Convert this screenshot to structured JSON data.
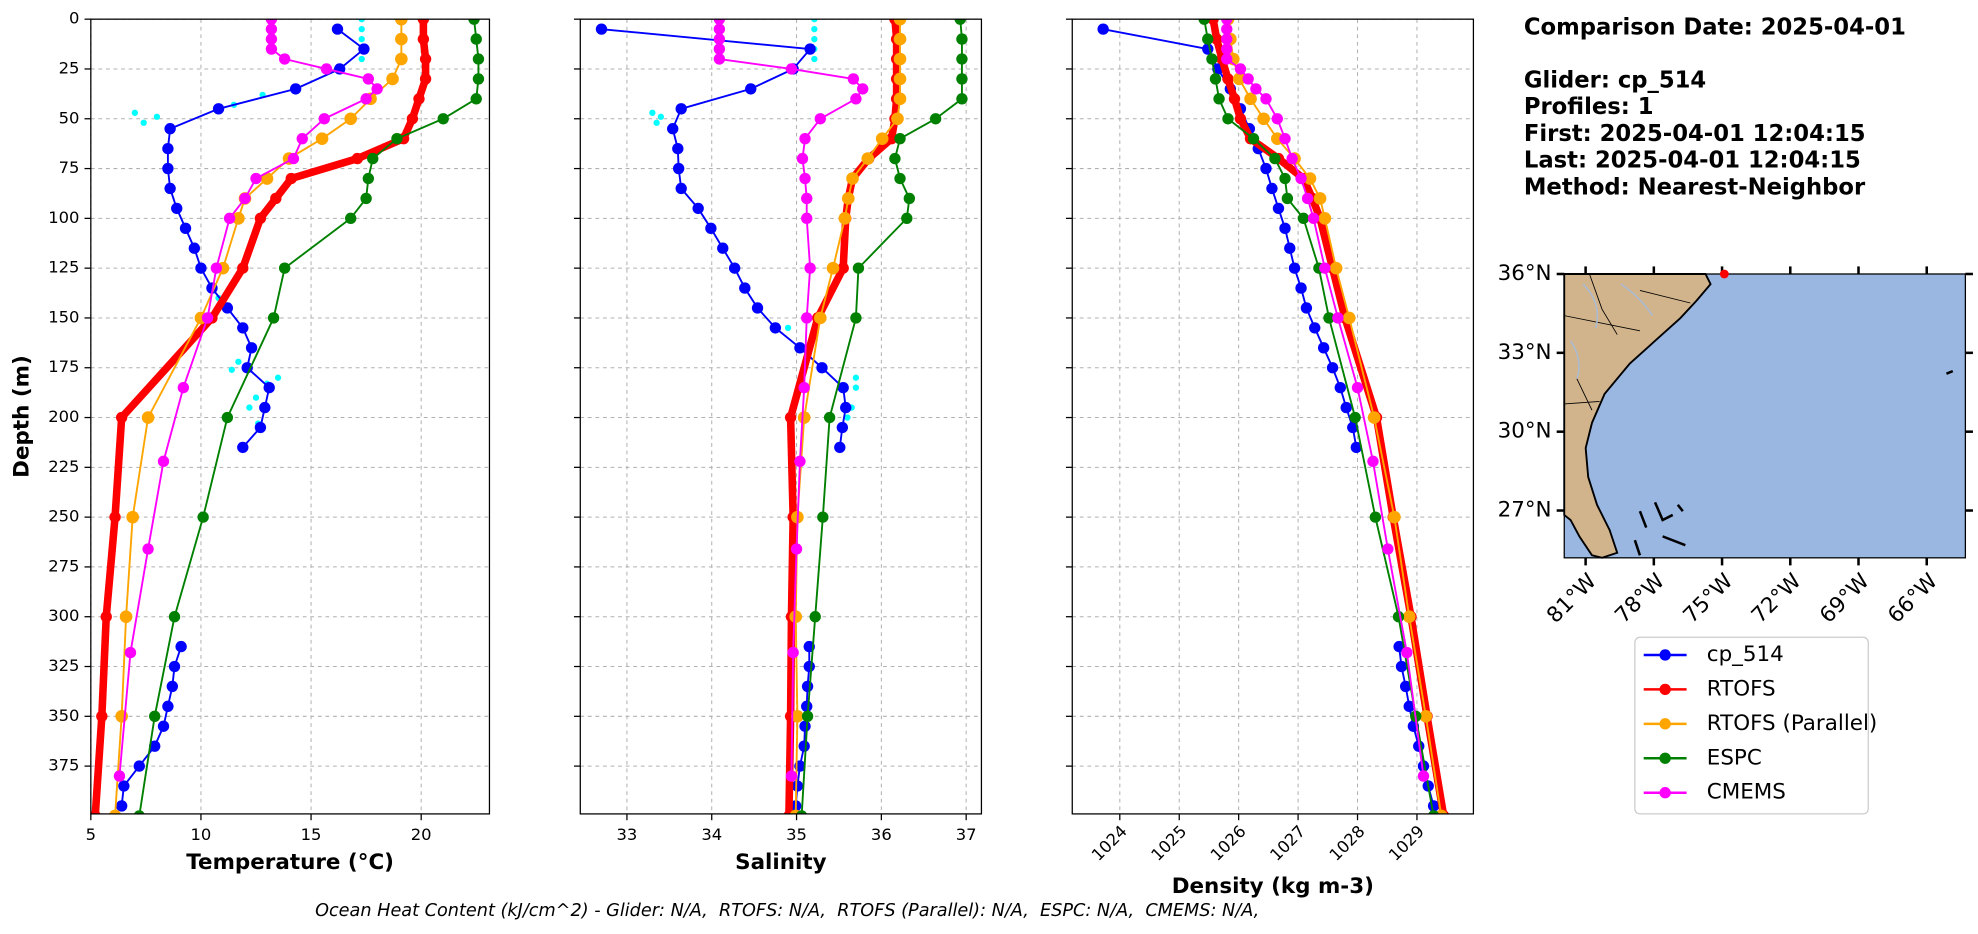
{
  "info": [
    "Comparison Date: 2025-04-01",
    "Glider: cp_514",
    "Profiles: 1",
    "First: 2025-04-01 12:04:15",
    "Last: 2025-04-01 12:04:15",
    "Method: Nearest-Neighbor"
  ],
  "footer": "Ocean Heat Content (kJ/cm^2) - Glider: N/A,  RTOFS: N/A,  RTOFS (Parallel): N/A,  ESPC: N/A,  CMEMS: N/A,",
  "legend": {
    "entries": [
      {
        "name": "cp_514",
        "color": "#0000ff",
        "linewidth": 1.5,
        "marker_radius": 4.5
      },
      {
        "name": "RTOFS",
        "color": "#ff0000",
        "linewidth": 6,
        "marker_radius": 4.5
      },
      {
        "name": "RTOFS (Parallel)",
        "color": "#ffa500",
        "linewidth": 1.5,
        "marker_radius": 5
      },
      {
        "name": "ESPC",
        "color": "#008000",
        "linewidth": 1.5,
        "marker_radius": 4.5
      },
      {
        "name": "CMEMS",
        "color": "#ff00ff",
        "linewidth": 1.5,
        "marker_radius": 4.5
      }
    ]
  },
  "raw_color": "#00ffff",
  "chart_data": [
    {
      "type": "line",
      "xlabel": "Temperature (°C)",
      "ylabel": "Depth (m)",
      "xlim": [
        5,
        23.1
      ],
      "xticks": [
        5,
        10,
        15,
        20
      ],
      "ylim": [
        399,
        0
      ],
      "yticks": [
        0,
        25,
        50,
        75,
        100,
        125,
        150,
        175,
        200,
        225,
        250,
        275,
        300,
        325,
        350,
        375
      ],
      "grid": true,
      "raw": {
        "x": [
          17.3,
          17.3,
          17.3,
          17.3,
          17.3,
          12.8,
          11.5,
          7.0,
          8.0,
          7.4,
          10.8,
          11.7,
          11.4,
          13.5,
          13.0,
          12.5,
          12.2,
          12.6
        ],
        "y": [
          0,
          5,
          10,
          15,
          20,
          38,
          43,
          47,
          49,
          52,
          140,
          172,
          176,
          180,
          183,
          190,
          195,
          203
        ]
      },
      "series": [
        {
          "x": [
            16.2,
            17.4,
            16.3,
            14.3,
            10.8,
            8.6,
            8.5,
            8.5,
            8.6,
            8.9,
            9.3,
            9.7,
            10.0,
            10.5,
            11.2,
            11.9,
            12.3,
            12.1,
            13.1,
            12.9,
            12.7,
            11.9,
            null,
            9.1,
            8.8,
            8.7,
            8.5,
            8.3,
            7.9,
            7.2,
            6.5,
            6.4
          ],
          "y": [
            5,
            15,
            25,
            35,
            45,
            55,
            65,
            75,
            85,
            95,
            105,
            115,
            125,
            135,
            145,
            155,
            165,
            175,
            185,
            195,
            205,
            215,
            null,
            315,
            325,
            335,
            345,
            355,
            365,
            375,
            385,
            395
          ]
        },
        {
          "x": [
            20.1,
            20.1,
            20.2,
            20.2,
            19.9,
            19.6,
            19.2,
            17.1,
            14.1,
            13.4,
            12.7,
            11.9,
            10.5,
            6.4,
            6.1,
            5.7,
            5.5,
            5.2
          ],
          "y": [
            0,
            10,
            20,
            30,
            40,
            50,
            60,
            70,
            80,
            90,
            100,
            125,
            150,
            200,
            250,
            300,
            350,
            400
          ]
        },
        {
          "x": [
            19.1,
            19.1,
            19.1,
            18.7,
            17.7,
            16.8,
            15.5,
            14.0,
            13.0,
            12.0,
            11.7,
            11.0,
            10.0,
            7.6,
            6.9,
            6.6,
            6.4,
            6.1
          ],
          "y": [
            0,
            10,
            20,
            30,
            40,
            50,
            60,
            70,
            80,
            90,
            100,
            125,
            150,
            200,
            250,
            300,
            350,
            400
          ]
        },
        {
          "x": [
            22.4,
            22.5,
            22.6,
            22.6,
            22.5,
            21.0,
            18.9,
            17.8,
            17.6,
            17.5,
            16.8,
            13.8,
            13.3,
            11.2,
            10.1,
            8.8,
            7.9,
            7.2
          ],
          "y": [
            0,
            10,
            20,
            30,
            40,
            50,
            60,
            70,
            80,
            90,
            100,
            125,
            150,
            200,
            250,
            300,
            350,
            400
          ]
        },
        {
          "x": [
            13.2,
            13.2,
            13.2,
            13.2,
            13.8,
            15.7,
            17.6,
            18.0,
            17.5,
            15.6,
            14.6,
            14.2,
            12.5,
            12.0,
            11.3,
            10.7,
            10.3,
            9.2,
            8.3,
            7.6,
            6.8,
            6.3
          ],
          "y": [
            0,
            5,
            10,
            15,
            20,
            25,
            30,
            35,
            40,
            50,
            60,
            70,
            80,
            90,
            100,
            125,
            150,
            185,
            222,
            266,
            318,
            380
          ]
        }
      ]
    },
    {
      "type": "line",
      "xlabel": "Salinity",
      "xlim": [
        32.45,
        37.18
      ],
      "xticks": [
        33,
        34,
        35,
        36,
        37
      ],
      "ylim": [
        399,
        0
      ],
      "yticks": [
        0,
        25,
        50,
        75,
        100,
        125,
        150,
        175,
        200,
        225,
        250,
        275,
        300,
        325,
        350,
        375
      ],
      "grid": true,
      "raw": {
        "x": [
          35.21,
          35.21,
          35.21,
          35.21,
          35.21,
          33.3,
          33.4,
          33.35,
          34.9,
          35.7,
          35.7,
          35.65,
          35.6
        ],
        "y": [
          0,
          5,
          10,
          15,
          20,
          47,
          49,
          52,
          155,
          180,
          185,
          195,
          200
        ]
      },
      "series": [
        {
          "x": [
            32.7,
            35.16,
            34.96,
            34.46,
            33.64,
            33.54,
            33.6,
            33.61,
            33.64,
            33.84,
            33.99,
            34.13,
            34.27,
            34.39,
            34.54,
            34.75,
            35.04,
            35.3,
            35.55,
            35.58,
            35.54,
            35.51,
            null,
            35.15,
            35.15,
            35.13,
            35.12,
            35.1,
            35.09,
            35.04,
            35.01,
            34.99
          ],
          "y": [
            5,
            15,
            25,
            35,
            45,
            55,
            65,
            75,
            85,
            95,
            105,
            115,
            125,
            135,
            145,
            155,
            165,
            175,
            185,
            195,
            205,
            215,
            null,
            315,
            325,
            335,
            345,
            355,
            365,
            375,
            385,
            395
          ]
        },
        {
          "x": [
            36.16,
            36.18,
            36.18,
            36.18,
            36.18,
            36.16,
            36.12,
            35.85,
            35.66,
            35.61,
            35.58,
            35.55,
            35.25,
            34.93,
            34.96,
            34.94,
            34.93,
            34.91
          ],
          "y": [
            0,
            10,
            20,
            30,
            40,
            50,
            60,
            70,
            80,
            90,
            100,
            125,
            150,
            200,
            250,
            300,
            350,
            400
          ]
        },
        {
          "x": [
            36.22,
            36.22,
            36.22,
            36.22,
            36.22,
            36.19,
            36.01,
            35.84,
            35.66,
            35.61,
            35.57,
            35.43,
            35.28,
            35.09,
            35.01,
            34.99,
            35.01,
            34.99
          ],
          "y": [
            0,
            10,
            20,
            30,
            40,
            50,
            60,
            70,
            80,
            90,
            100,
            125,
            150,
            200,
            250,
            300,
            350,
            400
          ]
        },
        {
          "x": [
            36.93,
            36.95,
            36.95,
            36.95,
            36.95,
            36.64,
            36.22,
            36.16,
            36.22,
            36.33,
            36.3,
            35.73,
            35.7,
            35.39,
            35.31,
            35.22,
            35.13,
            35.06
          ],
          "y": [
            0,
            10,
            20,
            30,
            40,
            50,
            60,
            70,
            80,
            90,
            100,
            125,
            150,
            200,
            250,
            300,
            350,
            400
          ]
        },
        {
          "x": [
            34.09,
            34.09,
            34.09,
            34.09,
            34.09,
            34.94,
            35.67,
            35.78,
            35.7,
            35.28,
            35.1,
            35.07,
            35.1,
            35.12,
            35.12,
            35.16,
            35.12,
            35.09,
            35.04,
            35.0,
            34.96,
            34.94
          ],
          "y": [
            0,
            5,
            10,
            15,
            20,
            25,
            30,
            35,
            40,
            50,
            60,
            70,
            80,
            90,
            100,
            125,
            150,
            185,
            222,
            266,
            318,
            380
          ]
        }
      ]
    },
    {
      "type": "line",
      "xlabel": "Density (kg m-3)",
      "xtick_rotation": 45,
      "xlim": [
        1023.2,
        1029.95
      ],
      "xticks": [
        1024,
        1025,
        1026,
        1027,
        1028,
        1029
      ],
      "ylim": [
        399,
        0
      ],
      "yticks": [
        0,
        25,
        50,
        75,
        100,
        125,
        150,
        175,
        200,
        225,
        250,
        275,
        300,
        325,
        350,
        375
      ],
      "grid": true,
      "series": [
        {
          "x": [
            1023.72,
            1025.48,
            1025.65,
            1025.86,
            1026.03,
            1026.18,
            1026.33,
            1026.46,
            1026.56,
            1026.67,
            1026.78,
            1026.86,
            1026.94,
            1027.05,
            1027.14,
            1027.28,
            1027.43,
            1027.58,
            1027.71,
            1027.81,
            1027.92,
            1027.98,
            null,
            1028.7,
            1028.74,
            1028.81,
            1028.87,
            1028.94,
            1029.03,
            1029.11,
            1029.19,
            1029.28
          ],
          "y": [
            5,
            15,
            25,
            35,
            45,
            55,
            65,
            75,
            85,
            95,
            105,
            115,
            125,
            135,
            145,
            155,
            165,
            175,
            185,
            195,
            205,
            215,
            null,
            315,
            325,
            335,
            345,
            355,
            365,
            375,
            385,
            395
          ]
        },
        {
          "x": [
            1025.57,
            1025.63,
            1025.72,
            1025.82,
            1025.93,
            1026.03,
            1026.2,
            1026.67,
            1027.09,
            1027.24,
            1027.37,
            1027.58,
            1027.79,
            1028.32,
            1028.6,
            1028.9,
            1029.17,
            1029.45
          ],
          "y": [
            0,
            10,
            20,
            30,
            40,
            50,
            60,
            70,
            80,
            90,
            100,
            125,
            150,
            200,
            250,
            300,
            350,
            400
          ]
        },
        {
          "x": [
            1025.82,
            1025.86,
            1025.91,
            1026.01,
            1026.2,
            1026.42,
            1026.65,
            1026.94,
            1027.2,
            1027.37,
            1027.45,
            1027.64,
            1027.86,
            1028.28,
            1028.62,
            1028.87,
            1029.15,
            1029.41
          ],
          "y": [
            0,
            10,
            20,
            30,
            40,
            50,
            60,
            70,
            80,
            90,
            100,
            125,
            150,
            200,
            250,
            300,
            350,
            400
          ]
        },
        {
          "x": [
            1025.42,
            1025.48,
            1025.55,
            1025.61,
            1025.67,
            1025.82,
            1026.25,
            1026.61,
            1026.78,
            1026.82,
            1027.09,
            1027.35,
            1027.52,
            1027.96,
            1028.3,
            1028.69,
            1028.98,
            1029.28
          ],
          "y": [
            0,
            10,
            20,
            30,
            40,
            50,
            60,
            70,
            80,
            90,
            100,
            125,
            150,
            200,
            250,
            300,
            350,
            400
          ]
        },
        {
          "x": [
            1025.8,
            1025.8,
            1025.8,
            1025.8,
            1025.8,
            1026.03,
            1026.16,
            1026.29,
            1026.46,
            1026.65,
            1026.78,
            1026.9,
            1027.05,
            1027.16,
            1027.26,
            1027.45,
            1027.67,
            1028.0,
            1028.26,
            1028.51,
            1028.83,
            1029.11
          ],
          "y": [
            0,
            5,
            10,
            15,
            20,
            25,
            30,
            35,
            40,
            50,
            60,
            70,
            80,
            90,
            100,
            125,
            150,
            185,
            222,
            266,
            318,
            380
          ]
        }
      ]
    }
  ],
  "map": {
    "lonlim": [
      -81.94,
      -64.3
    ],
    "latlim": [
      25.2,
      36
    ],
    "latticks": [
      {
        "value": 36,
        "label": "36°N"
      },
      {
        "value": 33,
        "label": "33°N"
      },
      {
        "value": 30,
        "label": "30°N"
      },
      {
        "value": 27,
        "label": "27°N"
      }
    ],
    "lonticks": [
      {
        "value": -81,
        "label": "81°W"
      },
      {
        "value": -78,
        "label": "78°W"
      },
      {
        "value": -75,
        "label": "75°W"
      },
      {
        "value": -72,
        "label": "72°W"
      },
      {
        "value": -69,
        "label": "69°W"
      },
      {
        "value": -66,
        "label": "66°W"
      }
    ],
    "glider_position": {
      "lon": -74.9,
      "lat": 36,
      "color": "#ff0000"
    }
  }
}
